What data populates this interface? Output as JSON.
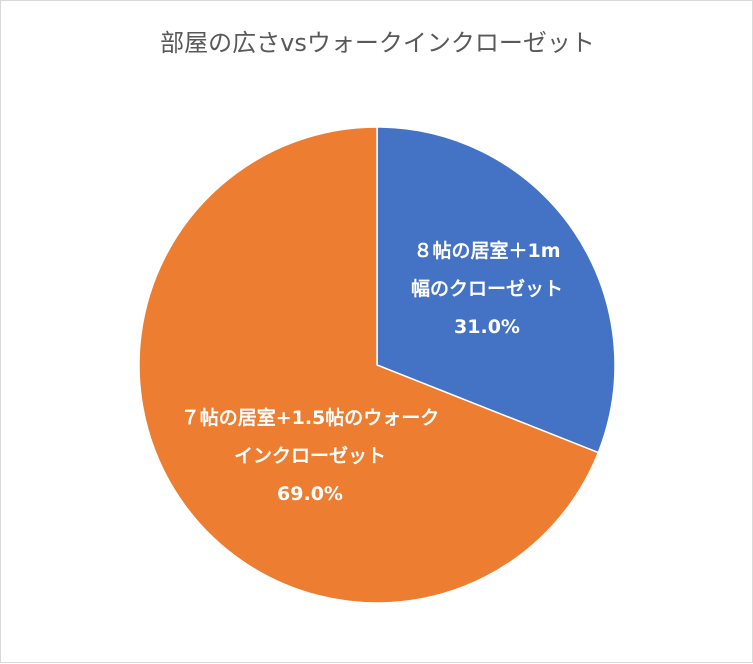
{
  "chart_data": {
    "type": "pie",
    "title": "部屋の広さvsウォークインクローゼット",
    "slices": [
      {
        "label_lines": [
          "８帖の居室＋1m",
          "幅のクローゼット"
        ],
        "value": 31.0,
        "percent_label": "31.0%",
        "color": "#4472C4"
      },
      {
        "label_lines": [
          "７帖の居室+1.5帖のウォーク",
          "インクローゼット"
        ],
        "value": 69.0,
        "percent_label": "69.0%",
        "color": "#ED7D31"
      }
    ],
    "start_angle_deg": 0,
    "direction": "clockwise",
    "slice_border_color": "#FFFFFF"
  }
}
